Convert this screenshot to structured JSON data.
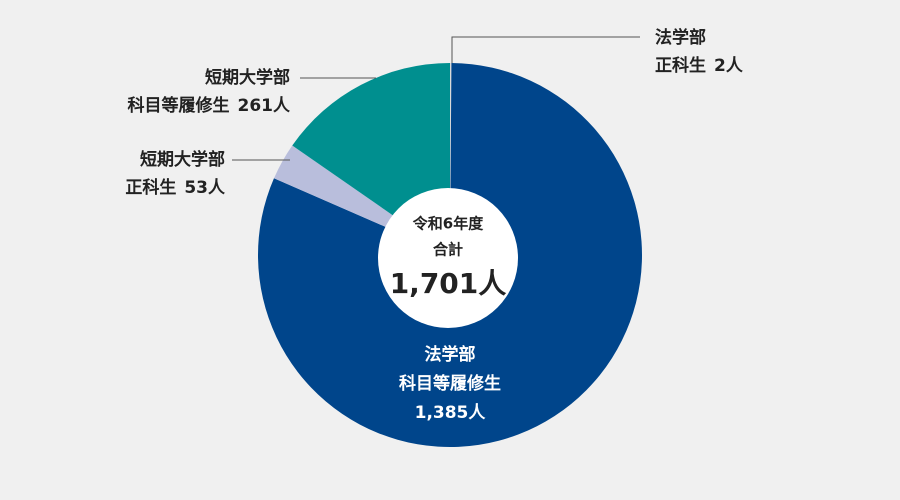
{
  "chart_data": {
    "type": "pie",
    "groups": [
      "法学部",
      "法学部",
      "短期大学部",
      "短期大学部"
    ],
    "categories": [
      "正科生",
      "科目等履修生",
      "正科生",
      "科目等履修生"
    ],
    "values": [
      2,
      1385,
      53,
      261
    ],
    "value_labels": [
      "2人",
      "1,385人",
      "53人",
      "261人"
    ],
    "colors": [
      "#d9d9d9",
      "#00458b",
      "#b9bedc",
      "#008f8f"
    ],
    "center_title": "令和6年度",
    "center_subtitle": "合計",
    "total": 1701,
    "total_label": "1,701人"
  }
}
